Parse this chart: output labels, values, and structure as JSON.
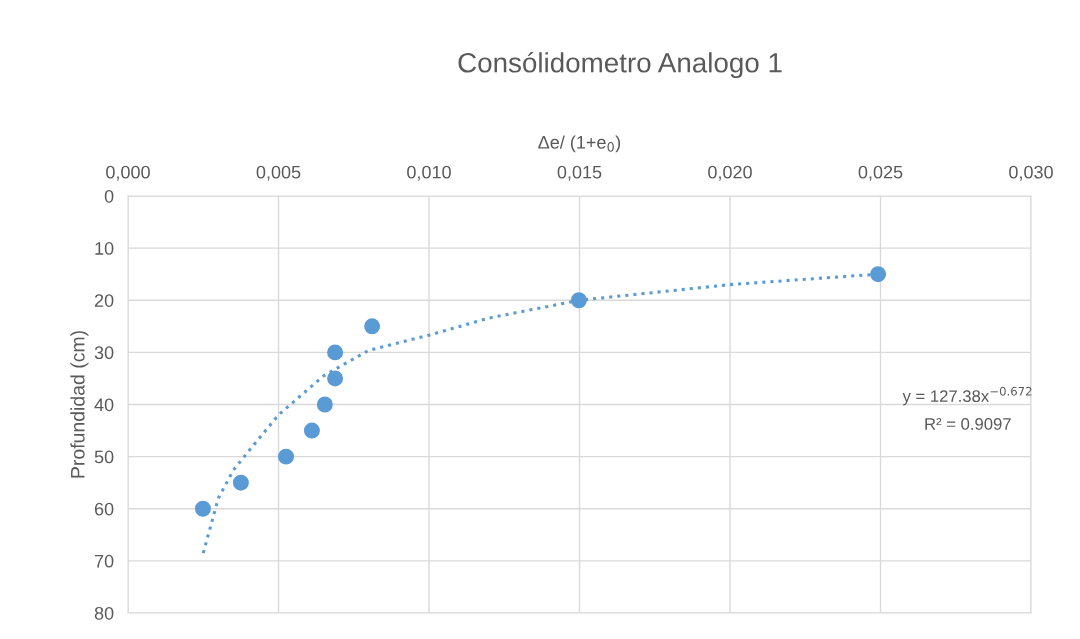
{
  "chart_data": {
    "type": "scatter",
    "title": "Consólidometro Analogo 1",
    "xlabel": "Δe/ (1+e$_{0}$)",
    "ylabel": "Profundidad (cm)",
    "xlim": [
      0,
      0.03
    ],
    "xticks": [
      {
        "value": 0,
        "label": "0,000"
      },
      {
        "value": 0.005,
        "label": "0,005"
      },
      {
        "value": 0.01,
        "label": "0,010"
      },
      {
        "value": 0.015,
        "label": "0,015"
      },
      {
        "value": 0.02,
        "label": "0,020"
      },
      {
        "value": 0.025,
        "label": "0,025"
      },
      {
        "value": 0.03,
        "label": "0,030"
      }
    ],
    "ylim": [
      80,
      0
    ],
    "yticks": [
      0,
      10,
      20,
      30,
      40,
      50,
      60,
      70,
      80
    ],
    "grid": true,
    "marker": "circle",
    "series": [
      {
        "color": "#5b9bd5",
        "x": [
          0.00249,
          0.00375,
          0.00525,
          0.00611,
          0.00654,
          0.00688,
          0.00688,
          0.00811,
          0.01498,
          0.02492
        ],
        "values": [
          60,
          55,
          50,
          45,
          40,
          35,
          30,
          25,
          20,
          15
        ]
      },
      {
        "type": "line",
        "color": "#5b9bd5",
        "line_style": "dotted",
        "marker": "none",
        "x": [
          0.0025,
          0.003,
          0.0035,
          0.004,
          0.005,
          0.0065,
          0.008,
          0.01,
          0.012,
          0.015,
          0.02,
          0.0249
        ],
        "values": [
          68.5,
          58,
          52.6,
          49,
          42,
          34.5,
          29.6,
          26.7,
          23.4,
          20,
          17,
          15
        ]
      }
    ],
    "annotations": [
      "y = 127.38x$^{−0.672}$",
      "R² = 0.9097"
    ]
  }
}
